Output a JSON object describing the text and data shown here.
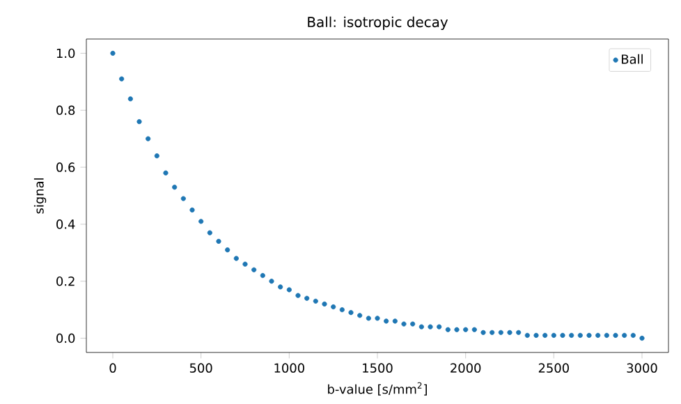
{
  "chart_data": {
    "type": "scatter",
    "title": "Ball: isotropic decay",
    "xlabel": "b-value [s/mm$^{2}$]",
    "ylabel": "signal",
    "x": [
      0,
      50,
      100,
      150,
      200,
      250,
      300,
      350,
      400,
      450,
      500,
      550,
      600,
      650,
      700,
      750,
      800,
      850,
      900,
      950,
      1000,
      1050,
      1100,
      1150,
      1200,
      1250,
      1300,
      1350,
      1400,
      1450,
      1500,
      1550,
      1600,
      1650,
      1700,
      1750,
      1800,
      1850,
      1900,
      1950,
      2000,
      2050,
      2100,
      2150,
      2200,
      2250,
      2300,
      2350,
      2400,
      2450,
      2500,
      2550,
      2600,
      2650,
      2700,
      2750,
      2800,
      2850,
      2900,
      2950,
      3000
    ],
    "series": [
      {
        "name": "Ball",
        "color": "#1f77b4",
        "values": [
          1.0,
          0.91,
          0.84,
          0.76,
          0.7,
          0.64,
          0.58,
          0.53,
          0.49,
          0.45,
          0.41,
          0.37,
          0.34,
          0.31,
          0.28,
          0.26,
          0.24,
          0.22,
          0.2,
          0.18,
          0.17,
          0.15,
          0.14,
          0.13,
          0.12,
          0.11,
          0.1,
          0.09,
          0.08,
          0.07,
          0.07,
          0.06,
          0.06,
          0.05,
          0.05,
          0.04,
          0.04,
          0.04,
          0.03,
          0.03,
          0.03,
          0.03,
          0.02,
          0.02,
          0.02,
          0.02,
          0.02,
          0.01,
          0.01,
          0.01,
          0.01,
          0.01,
          0.01,
          0.01,
          0.01,
          0.01,
          0.01,
          0.01,
          0.01,
          0.01,
          0.0
        ]
      }
    ],
    "xlim": [
      -150,
      3150
    ],
    "ylim": [
      -0.05,
      1.05
    ],
    "xticks": [
      0,
      500,
      1000,
      1500,
      2000,
      2500,
      3000
    ],
    "yticks": [
      {
        "value": 0,
        "label": "0.0"
      },
      {
        "value": 0.2,
        "label": "0.2"
      },
      {
        "value": 0.4,
        "label": "0.4"
      },
      {
        "value": 0.6,
        "label": "0.6"
      },
      {
        "value": 0.8,
        "label": "0.8"
      },
      {
        "value": 1.0,
        "label": "1.0"
      }
    ],
    "legend": "top right",
    "marker": "circle",
    "grid": false
  }
}
